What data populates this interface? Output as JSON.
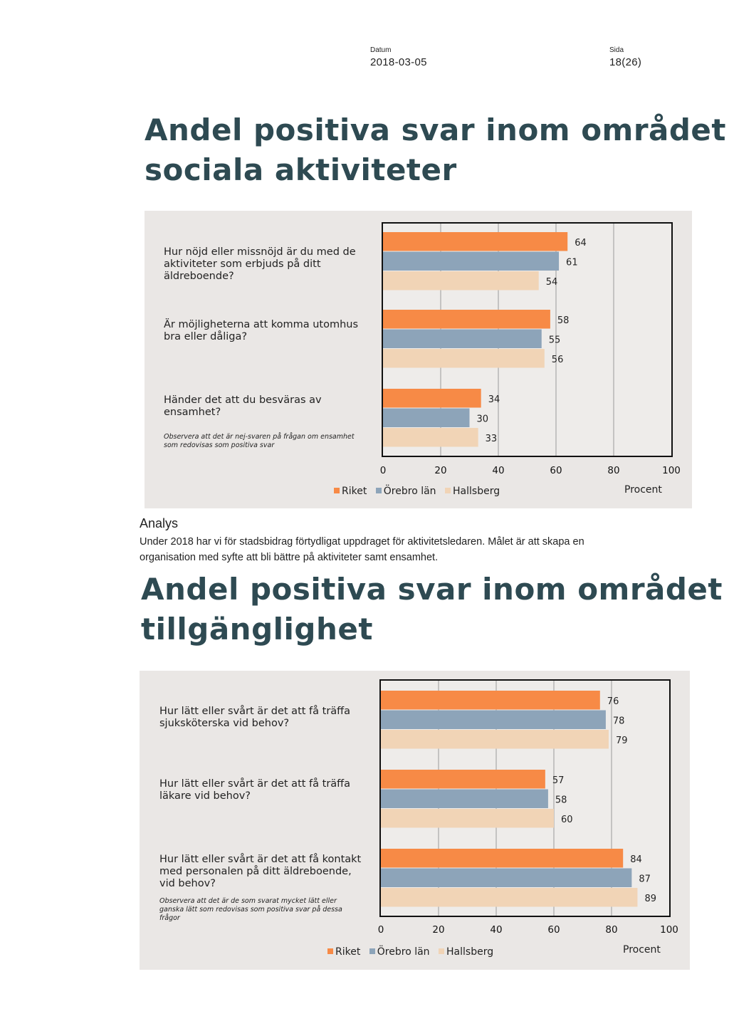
{
  "header": {
    "date_label": "Datum",
    "date_value": "2018-03-05",
    "page_label": "Sida",
    "page_value": "18(26)"
  },
  "section1": {
    "heading_line1": "Andel positiva svar inom området",
    "heading_line2": "sociala aktiviteter"
  },
  "analysis": {
    "title": "Analys",
    "text": "Under 2018 har vi för stadsbidrag förtydligat uppdraget för aktivitetsledaren. Målet är att skapa en organisation med syfte att bli bättre på aktiviteter samt ensamhet."
  },
  "section2": {
    "heading_line1": "Andel positiva svar inom området",
    "heading_line2": "tillgänglighet"
  },
  "chart_data": [
    {
      "type": "bar",
      "orientation": "horizontal",
      "categories": [
        "Hur nöjd eller missnöjd är du med de aktiviteter som erbjuds på ditt äldreboende?",
        "Är möjligheterna att komma utomhus bra eller dåliga?",
        "Händer det att du besväras av ensamhet?"
      ],
      "series": [
        {
          "name": "Riket",
          "color": "#f78a46",
          "values": [
            64,
            58,
            34
          ]
        },
        {
          "name": "Örebro län",
          "color": "#8da4b9",
          "values": [
            61,
            55,
            30
          ]
        },
        {
          "name": "Hallsberg",
          "color": "#f1d4b6",
          "values": [
            54,
            56,
            33
          ]
        }
      ],
      "note": "Observera att det är nej-svaren på frågan om ensamhet som redovisas som positiva svar",
      "xlim": [
        0,
        100
      ],
      "xticks": [
        "0",
        "20",
        "40",
        "60",
        "80",
        "100"
      ],
      "xlabel": "Procent",
      "legend_position": "bottom",
      "grid": true
    },
    {
      "type": "bar",
      "orientation": "horizontal",
      "categories": [
        "Hur lätt eller svårt är det att få träffa sjuksköterska vid behov?",
        "Hur lätt eller svårt är det att få träffa läkare vid behov?",
        "Hur lätt eller svårt är det att få kontakt med personalen på ditt äldreboende, vid behov?"
      ],
      "series": [
        {
          "name": "Riket",
          "color": "#f78a46",
          "values": [
            76,
            57,
            84
          ]
        },
        {
          "name": "Örebro län",
          "color": "#8da4b9",
          "values": [
            78,
            58,
            87
          ]
        },
        {
          "name": "Hallsberg",
          "color": "#f1d4b6",
          "values": [
            79,
            60,
            89
          ]
        }
      ],
      "note": "Observera att det är de som svarat mycket lätt eller ganska lätt som redovisas som positiva svar på dessa frågor",
      "xlim": [
        0,
        100
      ],
      "xticks": [
        "0",
        "20",
        "40",
        "60",
        "80",
        "100"
      ],
      "xlabel": "Procent",
      "legend_position": "bottom",
      "grid": true
    }
  ]
}
